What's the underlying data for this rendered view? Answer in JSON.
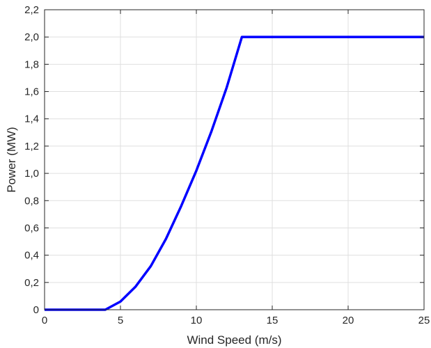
{
  "chart_data": {
    "type": "line",
    "title": "",
    "xlabel": "Wind Speed (m/s)",
    "ylabel": "Power (MW)",
    "xlim": [
      0,
      25
    ],
    "ylim": [
      0,
      2.2
    ],
    "x_ticks": [
      0,
      5,
      10,
      15,
      20,
      25
    ],
    "x_tick_labels": [
      "0",
      "5",
      "10",
      "15",
      "20",
      "25"
    ],
    "y_ticks": [
      0,
      0.2,
      0.4,
      0.6,
      0.8,
      1.0,
      1.2,
      1.4,
      1.6,
      1.8,
      2.0,
      2.2
    ],
    "y_tick_labels": [
      "0",
      "0,2",
      "0,4",
      "0,6",
      "0,8",
      "1,0",
      "1,2",
      "1,4",
      "1,6",
      "1,8",
      "2,0",
      "2,2"
    ],
    "grid": true,
    "series": [
      {
        "color": "#0000ff",
        "x": [
          0,
          4,
          5,
          6,
          7,
          8,
          9,
          10,
          11,
          12,
          13,
          25
        ],
        "y": [
          0,
          0,
          0.06,
          0.17,
          0.32,
          0.52,
          0.76,
          1.02,
          1.31,
          1.63,
          2.0,
          2.0
        ]
      }
    ]
  }
}
